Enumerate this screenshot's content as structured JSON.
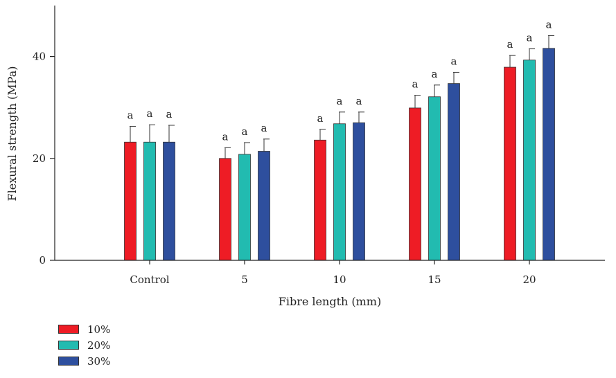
{
  "chart_data": {
    "type": "bar",
    "xlabel": "Fibre length (mm)",
    "ylabel": "Flexural strength (MPa)",
    "ylim": [
      0,
      50
    ],
    "yticks": [
      0,
      20,
      40
    ],
    "categories": [
      "Control",
      "5",
      "10",
      "15",
      "20"
    ],
    "series": [
      {
        "name": "10%",
        "color": "#ee1c25",
        "values": [
          23.2,
          20.0,
          23.6,
          29.9,
          37.9
        ],
        "errors": [
          3.1,
          2.1,
          2.1,
          2.5,
          2.3
        ],
        "labels": [
          "a",
          "a",
          "a",
          "a",
          "a"
        ]
      },
      {
        "name": "20%",
        "color": "#22bbb0",
        "values": [
          23.2,
          20.8,
          26.8,
          32.1,
          39.3
        ],
        "errors": [
          3.4,
          2.3,
          2.3,
          2.3,
          2.2
        ],
        "labels": [
          "a",
          "a",
          "a",
          "a",
          "a"
        ]
      },
      {
        "name": "30%",
        "color": "#2e4f9e",
        "values": [
          23.2,
          21.4,
          27.0,
          34.7,
          41.6
        ],
        "errors": [
          3.3,
          2.4,
          2.1,
          2.2,
          2.5
        ],
        "labels": [
          "a",
          "a",
          "a",
          "a",
          "a"
        ]
      }
    ],
    "grid": false,
    "legend_position": "bottom-left"
  }
}
